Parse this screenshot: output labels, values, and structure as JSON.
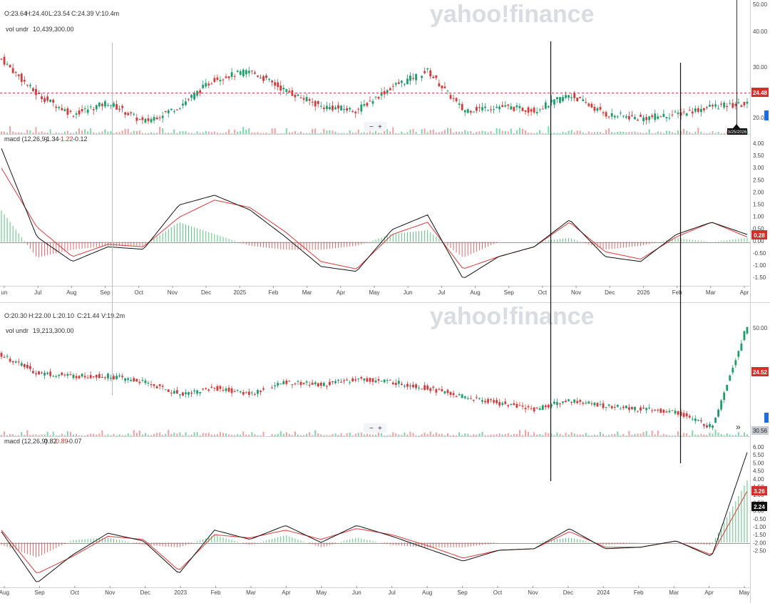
{
  "watermark": "yahoo!finance",
  "panels": [
    {
      "ohlc": {
        "o": "O:23.64",
        "h": "H:24.40",
        "l": "L:23.54",
        "c": "C:24.39",
        "v": "V:10.4m"
      },
      "volume_label": "vol undr",
      "volume_value": "10,439,300.00",
      "price_ticks": [
        "50.00",
        "40.00",
        "30.00",
        "20.00"
      ],
      "last_price": "24.48",
      "date_badge": "3/25/2026",
      "zoom": {
        "minus": "−",
        "plus": "+"
      },
      "macd_label": "macd (12,26,9)",
      "macd_values": {
        "macd": "-1.34",
        "signal": "-1.22",
        "hist": "-0.12"
      },
      "macd_ticks": [
        "4.00",
        "3.50",
        "3.00",
        "2.50",
        "2.00",
        "1.50",
        "1.00",
        "0.50",
        "0.00",
        "-0.50",
        "-1.00",
        "-1.50"
      ],
      "macd_badge": "0.28",
      "x_months": [
        "un",
        "Jul",
        "Aug",
        "Sep",
        "Oct",
        "Nov",
        "Dec",
        "2025",
        "Feb",
        "Mar",
        "Apr",
        "May",
        "Jun",
        "Jul",
        "Aug",
        "Sep",
        "Oct",
        "Nov",
        "Dec",
        "2026",
        "Feb",
        "Mar",
        "Apr"
      ]
    },
    {
      "ohlc": {
        "o": "O:20.30",
        "h": "H:22.00",
        "l": "L:20.10",
        "c": "C:21.44",
        "v": "V:19.2m"
      },
      "volume_label": "vol undr",
      "volume_value": "19,213,300.00",
      "price_ticks": [
        "50.00"
      ],
      "last_price": "24.52",
      "vol_badge": "30.56",
      "expand": "»",
      "zoom": {
        "minus": "−",
        "plus": "+"
      },
      "macd_label": "macd (12,26,9)",
      "macd_values": {
        "macd": "0.82",
        "signal": "0.89",
        "hist": "-0.07"
      },
      "macd_ticks": [
        "6.00",
        "5.50",
        "5.00",
        "4.50",
        "4.00",
        "1.50",
        "1.00",
        "0.50",
        "0.00",
        "-0.50",
        "-1.00",
        "-1.50",
        "-2.00",
        "-2.50"
      ],
      "macd_badges": [
        "3.26",
        "2.24"
      ],
      "x_months": [
        "Aug",
        "Sep",
        "Oct",
        "Nov",
        "Dec",
        "2023",
        "Feb",
        "Mar",
        "Apr",
        "May",
        "Jun",
        "Jul",
        "Aug",
        "Sep",
        "Oct",
        "Nov",
        "Dec",
        "2024",
        "Feb",
        "Mar",
        "Apr",
        "May"
      ]
    }
  ],
  "chart_data": [
    {
      "type": "candlestick",
      "series": [
        {
          "name": "price",
          "x": [
            "Jun",
            "Jul",
            "Aug",
            "Sep",
            "Oct",
            "Nov",
            "Dec",
            "2025",
            "Feb",
            "Mar",
            "Apr",
            "May",
            "Jun",
            "Jul",
            "Aug",
            "Sep",
            "Oct",
            "Nov",
            "Dec",
            "2026",
            "Feb",
            "Mar"
          ],
          "values": [
            36,
            27,
            22,
            25,
            20,
            24,
            31,
            33,
            28,
            24,
            23,
            29,
            33,
            23,
            24,
            23,
            27,
            22,
            21,
            22,
            24,
            24.5
          ]
        },
        {
          "name": "macd",
          "values": [
            3.8,
            0.2,
            -0.8,
            -0.2,
            -0.3,
            1.5,
            1.9,
            1.3,
            0.2,
            -1.0,
            -1.2,
            0.5,
            1.1,
            -1.5,
            -0.6,
            -0.2,
            0.9,
            -0.6,
            -0.8,
            0.3,
            0.8,
            0.3
          ]
        },
        {
          "name": "signal",
          "values": [
            3.0,
            0.6,
            -0.6,
            -0.1,
            -0.2,
            1.0,
            1.7,
            1.4,
            0.4,
            -0.8,
            -1.1,
            0.3,
            0.8,
            -1.1,
            -0.6,
            -0.2,
            0.8,
            -0.4,
            -0.7,
            0.2,
            0.8,
            0.2
          ]
        }
      ],
      "ylim": [
        17,
        51
      ],
      "macd_ylim": [
        -1.7,
        4.1
      ]
    },
    {
      "type": "candlestick",
      "series": [
        {
          "name": "price",
          "x": [
            "Aug",
            "Sep",
            "Oct",
            "Nov",
            "Dec",
            "2023",
            "Feb",
            "Mar",
            "Apr",
            "May",
            "Jun",
            "Jul",
            "Aug",
            "Sep",
            "Oct",
            "Nov",
            "Dec",
            "2024",
            "Feb",
            "Mar",
            "Apr",
            "May"
          ],
          "values": [
            45,
            39,
            38,
            38,
            36,
            32,
            34,
            32,
            36,
            35,
            37,
            36,
            34,
            31,
            29,
            27,
            30,
            28,
            27,
            26,
            21,
            55
          ]
        },
        {
          "name": "macd",
          "values": [
            0.7,
            -2.6,
            -0.8,
            0.6,
            0.1,
            -2.0,
            0.8,
            0.2,
            1.1,
            0.0,
            1.1,
            0.4,
            -0.4,
            -1.2,
            -0.5,
            -0.4,
            0.9,
            -0.4,
            -0.3,
            0.1,
            -0.9,
            5.8
          ]
        },
        {
          "name": "signal",
          "values": [
            0.8,
            -2.0,
            -0.9,
            0.4,
            0.2,
            -1.8,
            0.5,
            0.3,
            0.8,
            0.2,
            0.9,
            0.5,
            -0.2,
            -1.0,
            -0.5,
            -0.4,
            0.7,
            -0.3,
            -0.3,
            0.1,
            -0.8,
            3.3
          ]
        }
      ],
      "ylim": [
        18,
        62
      ],
      "macd_ylim": [
        -2.7,
        6.2
      ]
    }
  ]
}
